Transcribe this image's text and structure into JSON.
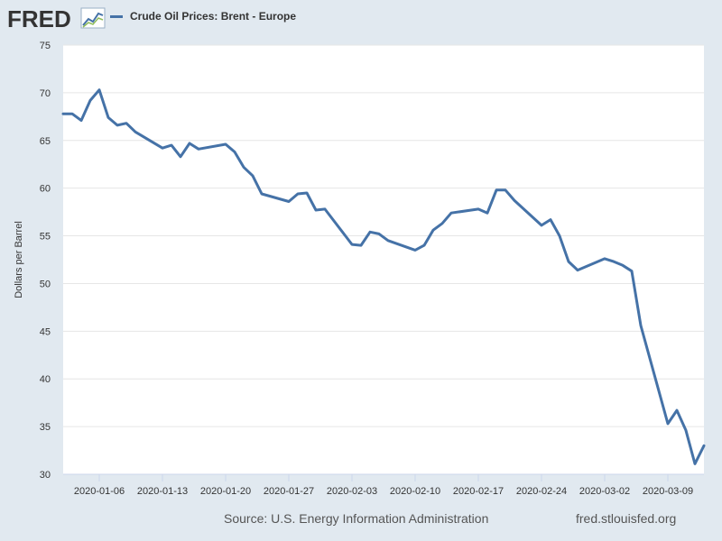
{
  "header": {
    "logo_text": "FRED",
    "legend_label": "Crude Oil Prices: Brent - Europe"
  },
  "footer": {
    "source": "Source: U.S. Energy Information Administration",
    "site": "fred.stlouisfed.org"
  },
  "colors": {
    "series": "#4572a7",
    "background": "#e1e9f0",
    "plot_background": "#ffffff",
    "gridline": "#e6e6e6",
    "logo": "#333333"
  },
  "chart_data": {
    "type": "line",
    "title": "",
    "xlabel": "",
    "ylabel": "Dollars per Barrel",
    "ylim": [
      30,
      75
    ],
    "yticks": [
      30,
      35,
      40,
      45,
      50,
      55,
      60,
      65,
      70,
      75
    ],
    "xlim": [
      "2020-01-02",
      "2020-03-13"
    ],
    "xticks": [
      "2020-01-06",
      "2020-01-13",
      "2020-01-20",
      "2020-01-27",
      "2020-02-03",
      "2020-02-10",
      "2020-02-17",
      "2020-02-24",
      "2020-03-02",
      "2020-03-09"
    ],
    "grid": true,
    "legend": "top-left",
    "series": [
      {
        "name": "Crude Oil Prices: Brent - Europe",
        "x": [
          "2020-01-02",
          "2020-01-03",
          "2020-01-04",
          "2020-01-05",
          "2020-01-06",
          "2020-01-07",
          "2020-01-08",
          "2020-01-09",
          "2020-01-10",
          "2020-01-13",
          "2020-01-14",
          "2020-01-15",
          "2020-01-16",
          "2020-01-17",
          "2020-01-20",
          "2020-01-21",
          "2020-01-22",
          "2020-01-23",
          "2020-01-24",
          "2020-01-27",
          "2020-01-28",
          "2020-01-29",
          "2020-01-30",
          "2020-01-31",
          "2020-02-03",
          "2020-02-04",
          "2020-02-05",
          "2020-02-06",
          "2020-02-07",
          "2020-02-10",
          "2020-02-11",
          "2020-02-12",
          "2020-02-13",
          "2020-02-14",
          "2020-02-17",
          "2020-02-18",
          "2020-02-19",
          "2020-02-20",
          "2020-02-21",
          "2020-02-24",
          "2020-02-25",
          "2020-02-26",
          "2020-02-27",
          "2020-02-28",
          "2020-03-02",
          "2020-03-03",
          "2020-03-04",
          "2020-03-05",
          "2020-03-06",
          "2020-03-09",
          "2020-03-10",
          "2020-03-11",
          "2020-03-12",
          "2020-03-13"
        ],
        "values": [
          67.8,
          67.8,
          67.1,
          69.2,
          70.3,
          67.4,
          66.6,
          66.8,
          65.9,
          64.2,
          64.5,
          63.3,
          64.7,
          64.1,
          64.6,
          63.8,
          62.2,
          61.3,
          59.4,
          58.6,
          59.4,
          59.5,
          57.7,
          57.8,
          54.1,
          54.0,
          55.4,
          55.2,
          54.5,
          53.5,
          54.0,
          55.6,
          56.3,
          57.4,
          57.8,
          57.4,
          59.8,
          59.8,
          58.7,
          56.1,
          56.7,
          55.0,
          52.3,
          51.4,
          52.6,
          52.3,
          51.9,
          51.3,
          45.6,
          35.3,
          36.7,
          34.6,
          31.1,
          33.0
        ]
      }
    ]
  }
}
